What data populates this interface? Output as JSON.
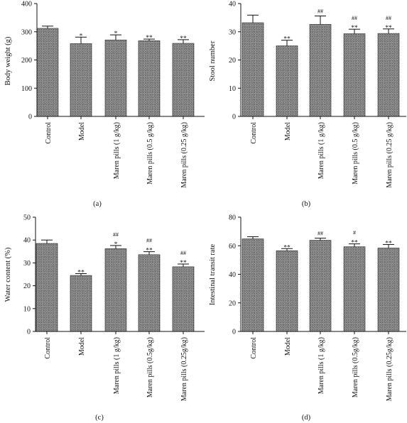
{
  "chart_data": [
    {
      "type": "bar",
      "panel": "(a)",
      "ylabel": "Body weight (g)",
      "ylim": [
        0,
        400
      ],
      "yticks": [
        0,
        100,
        200,
        300,
        400
      ],
      "categories": [
        "Control",
        "Model",
        "Maren pills (1 g/kg)",
        "Maren pills (0.5 g/kg)",
        "Maren pills (0.25 g/kg)"
      ],
      "values": [
        312,
        258,
        271,
        268,
        259
      ],
      "errors": [
        8,
        23,
        18,
        6,
        13
      ],
      "annotations": [
        [],
        [
          "*"
        ],
        [
          "*"
        ],
        [
          "**"
        ],
        [
          "**"
        ]
      ]
    },
    {
      "type": "bar",
      "panel": "(b)",
      "ylabel": "Stool number",
      "ylim": [
        0,
        40
      ],
      "yticks": [
        0,
        10,
        20,
        30,
        40
      ],
      "categories": [
        "Control",
        "Model",
        "Maren pills (1 g/kg)",
        "Maren pills (0.5 g/kg)",
        "Maren pills (0.25 g/kg)"
      ],
      "values": [
        33.2,
        25.0,
        32.6,
        29.3,
        29.4
      ],
      "errors": [
        2.7,
        2.0,
        3.0,
        1.6,
        1.6
      ],
      "annotations": [
        [],
        [
          "**"
        ],
        [
          "##"
        ],
        [
          "##",
          "**"
        ],
        [
          "##",
          "**"
        ]
      ]
    },
    {
      "type": "bar",
      "panel": "(c)",
      "ylabel": "Water content (%)",
      "ylim": [
        0,
        50
      ],
      "yticks": [
        0,
        10,
        20,
        30,
        40,
        50
      ],
      "categories": [
        "Control",
        "Model",
        "Maren pills (1 g/kg)",
        "Maren pills (0.5g/kg)",
        "Maren pills (0.25g/kg)"
      ],
      "values": [
        38.5,
        24.5,
        36.2,
        33.6,
        28.3
      ],
      "errors": [
        1.5,
        0.8,
        1.4,
        1.3,
        1.2
      ],
      "annotations": [
        [],
        [
          "**"
        ],
        [
          "##",
          "*"
        ],
        [
          "##",
          "**"
        ],
        [
          "##",
          "**"
        ]
      ]
    },
    {
      "type": "bar",
      "panel": "(d)",
      "ylabel": "Intestinal transit rate",
      "ylim": [
        0,
        80
      ],
      "yticks": [
        0,
        20,
        40,
        60,
        80
      ],
      "categories": [
        "Control",
        "Model",
        "Maren pills (1 g/kg)",
        "Maren pills (0.5g/kg)",
        "Maren pills (0.25g/kg)"
      ],
      "values": [
        64.8,
        56.5,
        63.8,
        59.3,
        58.4
      ],
      "errors": [
        1.5,
        1.5,
        1.5,
        2.0,
        2.5
      ],
      "annotations": [
        [],
        [
          "**"
        ],
        [
          "##"
        ],
        [
          "#",
          "**"
        ],
        [
          "**"
        ]
      ]
    }
  ],
  "style": {
    "bar_color": "#3a3a3a",
    "bar_pattern": "dense diagonal crosshatch",
    "axis_color": "#111111"
  }
}
